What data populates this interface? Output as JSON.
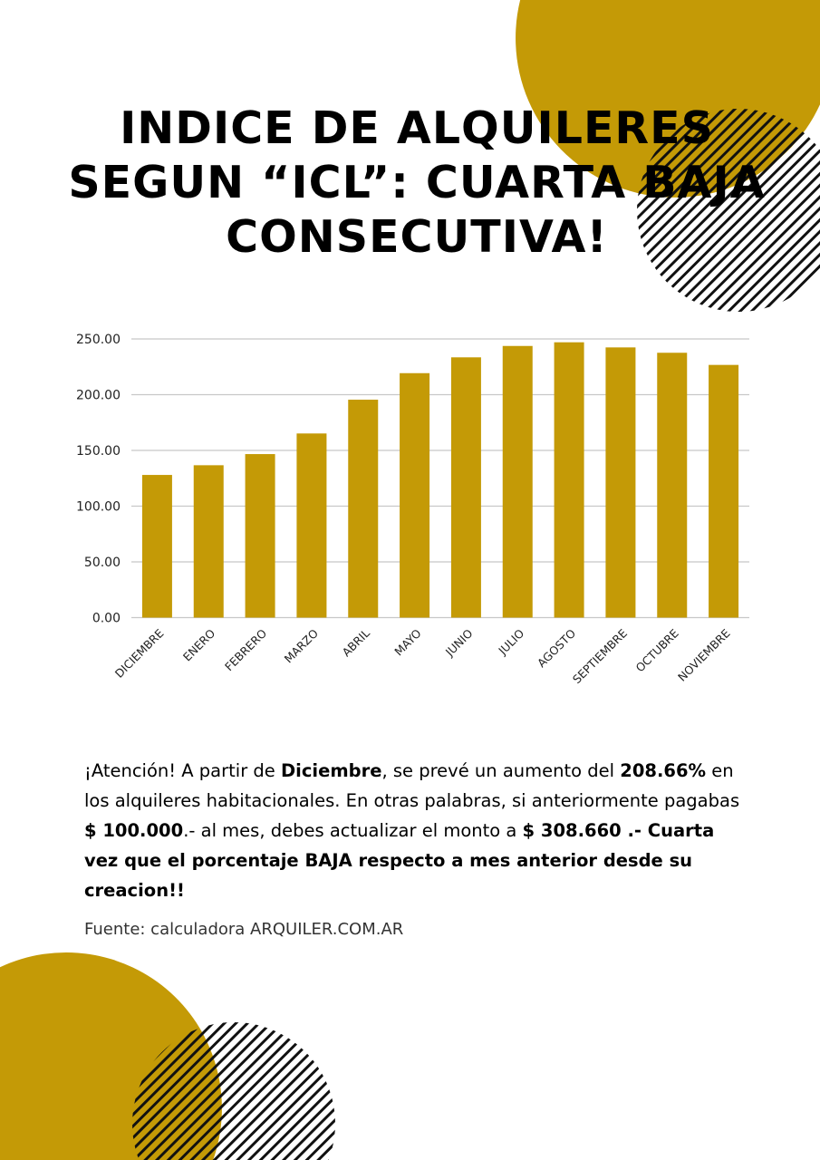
{
  "title": "INDICE DE ALQUILERES SEGUN “ICL”:  CUARTA BAJA CONSECUTIVA!",
  "colors": {
    "accent": "#C49A06",
    "grid": "#c8c8c8"
  },
  "chart_data": {
    "type": "bar",
    "categories": [
      "DICIEMBRE",
      "ENERO",
      "FEBRERO",
      "MARZO",
      "ABRIL",
      "MAYO",
      "JUNIO",
      "JULIO",
      "AGOSTO",
      "SEPTIEMBRE",
      "OCTUBRE",
      "NOVIEMBRE"
    ],
    "values": [
      128.0,
      136.7,
      146.7,
      165.2,
      195.5,
      219.3,
      233.5,
      243.7,
      247.0,
      242.4,
      237.6,
      226.7
    ],
    "yticks": [
      "0.00",
      "50.00",
      "100.00",
      "150.00",
      "200.00",
      "250.00"
    ],
    "ylim": [
      0,
      250
    ],
    "grid": true
  },
  "paragraph": {
    "p1": "¡Atención!  A partir de ",
    "b1": "Diciembre",
    "p2": ", se prevé un aumento del ",
    "b2": "208.66%",
    "p3": " en los alquileres habitacionales. En otras palabras, si anteriormente pagabas ",
    "b3": "$ 100.000",
    "p4": ".- al mes, debes actualizar el monto a ",
    "b4": "$ 308.660  .- Cuarta vez  que el porcentaje BAJA respecto a mes anterior desde su creacion!!"
  },
  "source": "Fuente: calculadora ARQUILER.COM.AR"
}
